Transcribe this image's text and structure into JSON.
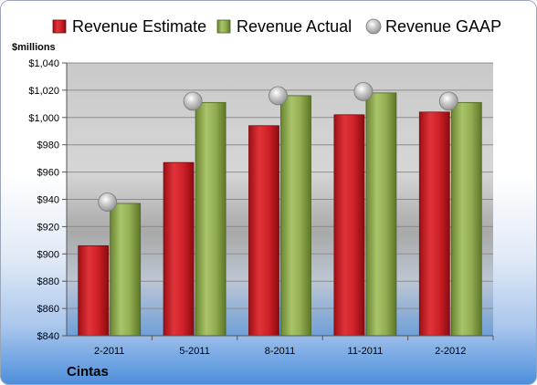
{
  "chart_data": {
    "type": "bar",
    "unit_label": "$millions",
    "categories": [
      "2-2011",
      "5-2011",
      "8-2011",
      "11-2011",
      "2-2012"
    ],
    "series": [
      {
        "name": "Revenue Estimate",
        "type": "bar",
        "color": "#c0161c",
        "values": [
          906,
          967,
          994,
          1002,
          1004
        ]
      },
      {
        "name": "Revenue Actual",
        "type": "bar",
        "color": "#7e9a3c",
        "values": [
          937,
          1011,
          1016,
          1018,
          1011
        ]
      },
      {
        "name": "Revenue GAAP",
        "type": "marker",
        "color": "#b8b8b8",
        "values": [
          938,
          1012,
          1016,
          1019,
          1012
        ]
      }
    ],
    "ylim": [
      840,
      1040
    ],
    "yticks": [
      "$840",
      "$860",
      "$880",
      "$900",
      "$920",
      "$940",
      "$960",
      "$980",
      "$1,000",
      "$1,020",
      "$1,040"
    ],
    "ytick_values": [
      840,
      860,
      880,
      900,
      920,
      940,
      960,
      980,
      1000,
      1020,
      1040
    ],
    "grid": true,
    "legend_position": "top"
  },
  "company": "Cintas"
}
